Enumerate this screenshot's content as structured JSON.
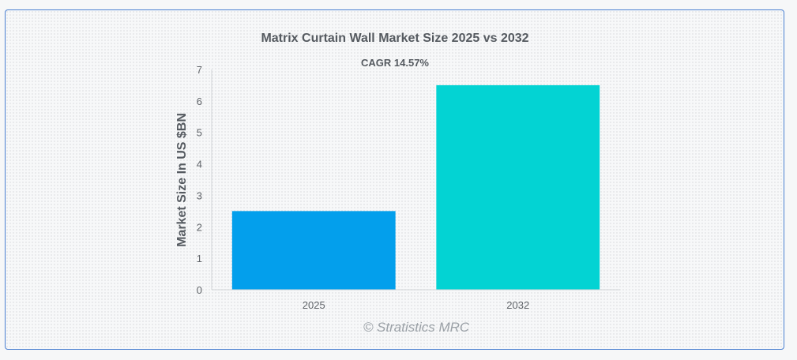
{
  "chart_data": {
    "type": "bar",
    "title": "Matrix Curtain Wall Market Size 2025 vs 2032",
    "subtitle": "CAGR 14.57%",
    "xlabel": "",
    "ylabel": "Market Size In US $BN",
    "categories": [
      "2025",
      "2032"
    ],
    "values": [
      2.5,
      6.5
    ],
    "colors": [
      "#039fec",
      "#03d3d3"
    ],
    "ylim": [
      0,
      7
    ],
    "yticks": [
      "0",
      "1",
      "2",
      "3",
      "4",
      "5",
      "6",
      "7"
    ],
    "grid": false,
    "legend": "none"
  },
  "watermark": "© Stratistics MRC"
}
